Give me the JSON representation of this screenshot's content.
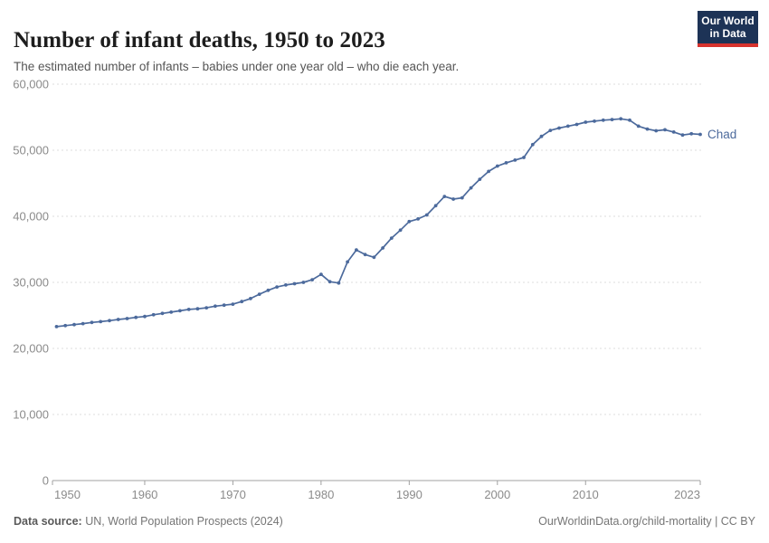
{
  "header": {
    "title": "Number of infant deaths, 1950 to 2023",
    "subtitle": "The estimated number of infants – babies under one year old – who die each year.",
    "logo": {
      "line1": "Our World",
      "line2": "in Data"
    }
  },
  "colors": {
    "line": "#4c6a9c",
    "grid": "#dedede",
    "axis": "#a1a1a1",
    "tick_label": "#8b8b8b",
    "logo_bg": "#1d3356",
    "logo_accent": "#d7332e"
  },
  "chart_data": {
    "type": "line",
    "title": "Number of infant deaths, 1950 to 2023",
    "xlabel": "",
    "ylabel": "",
    "xlim": [
      1950,
      2023
    ],
    "ylim": [
      0,
      60000
    ],
    "grid": "horizontal-dashed",
    "legend_position": "end-of-line-label",
    "x_ticks": [
      1950,
      1960,
      1970,
      1980,
      1990,
      2000,
      2010,
      2023
    ],
    "y_ticks": [
      0,
      10000,
      20000,
      30000,
      40000,
      50000,
      60000
    ],
    "y_tick_labels": [
      "0",
      "10,000",
      "20,000",
      "30,000",
      "40,000",
      "50,000",
      "60,000"
    ],
    "series": [
      {
        "name": "Chad",
        "x_start": 1950,
        "x_end": 2023,
        "values": [
          23300,
          23450,
          23600,
          23750,
          23930,
          24060,
          24200,
          24380,
          24520,
          24700,
          24840,
          25100,
          25300,
          25500,
          25700,
          25900,
          26000,
          26150,
          26400,
          26550,
          26700,
          27100,
          27550,
          28200,
          28800,
          29300,
          29600,
          29800,
          30000,
          30400,
          31200,
          30100,
          29900,
          33100,
          34900,
          34200,
          33800,
          35200,
          36700,
          37900,
          39200,
          39600,
          40200,
          41600,
          43000,
          42600,
          42800,
          44300,
          45600,
          46800,
          47600,
          48100,
          48500,
          48900,
          50850,
          52100,
          53000,
          53350,
          53650,
          53900,
          54250,
          54400,
          54550,
          54650,
          54750,
          54550,
          53650,
          53200,
          52950,
          53100,
          52750,
          52300,
          52500,
          52400
        ]
      }
    ]
  },
  "footer": {
    "source_label": "Data source:",
    "source_text": " UN, World Population Prospects (2024)",
    "right_text": "OurWorldinData.org/child-mortality | CC BY"
  }
}
